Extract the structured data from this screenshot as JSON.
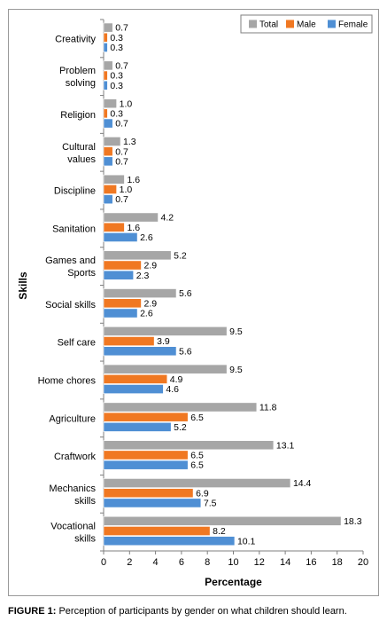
{
  "caption": {
    "figure_label": "FIGURE 1:",
    "text": " Perception of participants by gender on what children should learn."
  },
  "chart_data": {
    "type": "bar",
    "orientation": "horizontal",
    "xlabel": "Percentage",
    "ylabel": "Skills",
    "xlim": [
      0,
      20
    ],
    "x_ticks": [
      "0",
      "2",
      "4",
      "6",
      "8",
      "10",
      "12",
      "14",
      "16",
      "18",
      "20"
    ],
    "grid": false,
    "legend_position": "top-right",
    "categories": [
      [
        "Creativity"
      ],
      [
        "Problem",
        "solving"
      ],
      [
        "Religion"
      ],
      [
        "Cultural",
        "values"
      ],
      [
        "Discipline"
      ],
      [
        "Sanitation"
      ],
      [
        "Games and",
        "Sports"
      ],
      [
        "Social skills"
      ],
      [
        "Self care"
      ],
      [
        "Home chores"
      ],
      [
        "Agriculture"
      ],
      [
        "Craftwork"
      ],
      [
        "Mechanics",
        "skills"
      ],
      [
        "Vocational",
        "skills"
      ]
    ],
    "series": [
      {
        "name": "Total",
        "color": "#a6a6a6",
        "values": [
          0.7,
          0.7,
          1.0,
          1.3,
          1.6,
          4.2,
          5.2,
          5.6,
          9.5,
          9.5,
          11.8,
          13.1,
          14.4,
          18.3
        ],
        "labels": [
          "0.7",
          "0.7",
          "1.0",
          "1.3",
          "1.6",
          "4.2",
          "5.2",
          "5.6",
          "9.5",
          "9.5",
          "11.8",
          "13.1",
          "14.4",
          "18.3"
        ]
      },
      {
        "name": "Male",
        "color": "#f07822",
        "values": [
          0.3,
          0.3,
          0.3,
          0.7,
          1.0,
          1.6,
          2.9,
          2.9,
          3.9,
          4.9,
          6.5,
          6.5,
          6.9,
          8.2
        ],
        "labels": [
          "0.3",
          "0.3",
          "0.3",
          "0.7",
          "1.0",
          "1.6",
          "2.9",
          "2.9",
          "3.9",
          "4.9",
          "6.5",
          "6.5",
          "6.9",
          "8.2"
        ]
      },
      {
        "name": "Female",
        "color": "#4f8fd4",
        "values": [
          0.3,
          0.3,
          0.7,
          0.7,
          0.7,
          2.6,
          2.3,
          2.6,
          5.6,
          4.6,
          5.2,
          6.5,
          7.5,
          10.1
        ],
        "labels": [
          "0.3",
          "0.3",
          "0.7",
          "0.7",
          "0.7",
          "2.6",
          "2.3",
          "2.6",
          "5.6",
          "4.6",
          "5.2",
          "6.5",
          "7.5",
          "10.1"
        ]
      }
    ]
  }
}
